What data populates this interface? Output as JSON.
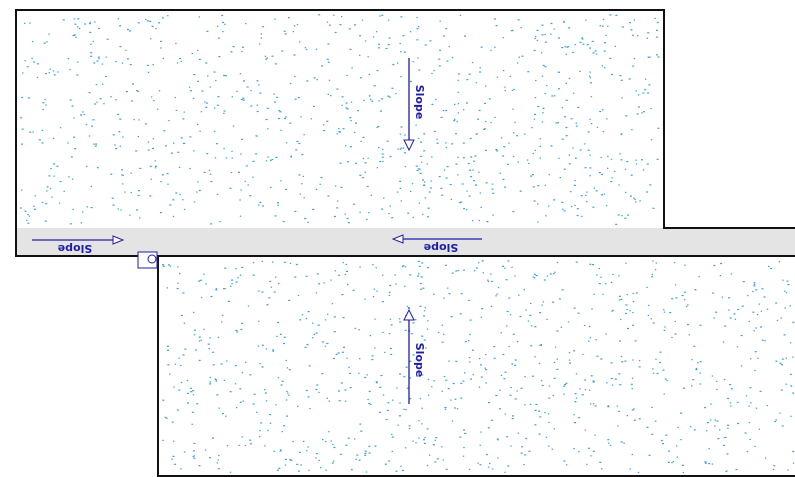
{
  "annotations": {
    "upper_slab_slope": "Slope",
    "walkway_left_slope": "Slope",
    "walkway_right_slope": "Slope",
    "lower_slab_slope": "Slope"
  },
  "colors": {
    "annotation": "#1e1ea8",
    "speckle": "#3aa0d8",
    "walkway_fill": "#e4e4e4",
    "border": "#111111"
  },
  "icons": {
    "drain": "drain-icon",
    "slope_arrow": "slope-arrow-icon"
  }
}
